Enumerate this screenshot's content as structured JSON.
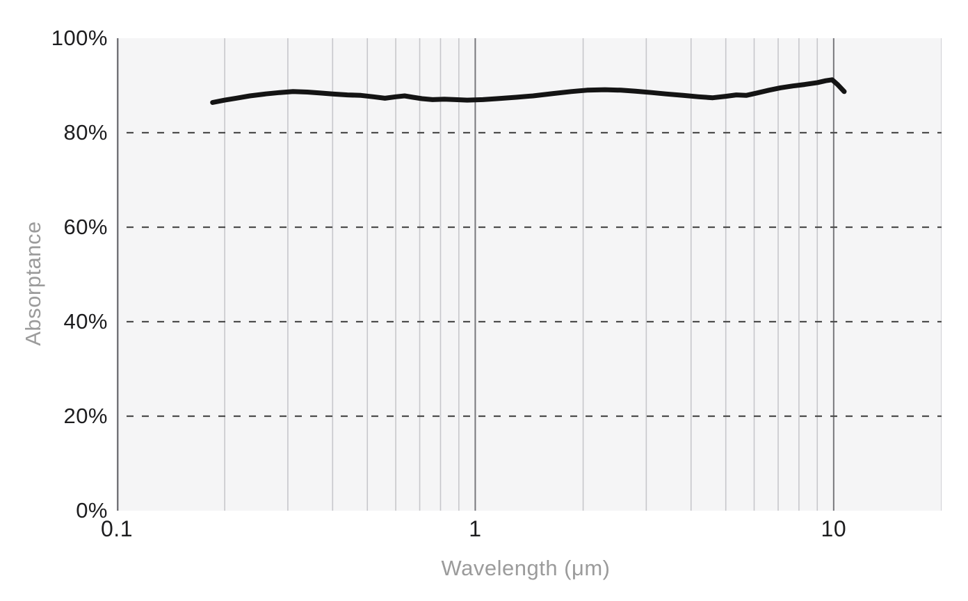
{
  "chart_data": {
    "type": "line",
    "title": "",
    "xlabel": "Wavelength (μm)",
    "ylabel": "Absorptance",
    "x_scale": "log",
    "xlim": [
      0.1,
      20
    ],
    "ylim": [
      0,
      100
    ],
    "grid": true,
    "legend": "none",
    "x_ticks": [
      {
        "value": 0.1,
        "label": "0.1"
      },
      {
        "value": 1,
        "label": "1"
      },
      {
        "value": 10,
        "label": "10"
      }
    ],
    "y_ticks": [
      {
        "value": 0,
        "label": "0%"
      },
      {
        "value": 20,
        "label": "20%"
      },
      {
        "value": 40,
        "label": "40%"
      },
      {
        "value": 60,
        "label": "60%"
      },
      {
        "value": 80,
        "label": "80%"
      },
      {
        "value": 100,
        "label": "100%"
      }
    ],
    "x_gridlines_minor": [
      0.2,
      0.3,
      0.4,
      0.5,
      0.6,
      0.7,
      0.8,
      0.9,
      2,
      3,
      4,
      5,
      6,
      7,
      8,
      9,
      20
    ],
    "x_gridlines_major": [
      1,
      10
    ],
    "y_gridlines_dashed": [
      20,
      40,
      60,
      80
    ],
    "series": [
      {
        "name": "Absorptance",
        "units": {
          "x": "μm",
          "y": "%"
        },
        "points": [
          [
            0.185,
            86.4
          ],
          [
            0.2,
            86.9
          ],
          [
            0.215,
            87.3
          ],
          [
            0.235,
            87.8
          ],
          [
            0.26,
            88.2
          ],
          [
            0.285,
            88.5
          ],
          [
            0.31,
            88.7
          ],
          [
            0.34,
            88.6
          ],
          [
            0.37,
            88.4
          ],
          [
            0.4,
            88.2
          ],
          [
            0.44,
            88.0
          ],
          [
            0.48,
            87.9
          ],
          [
            0.52,
            87.6
          ],
          [
            0.56,
            87.3
          ],
          [
            0.6,
            87.6
          ],
          [
            0.635,
            87.8
          ],
          [
            0.67,
            87.5
          ],
          [
            0.71,
            87.2
          ],
          [
            0.76,
            87.0
          ],
          [
            0.82,
            87.1
          ],
          [
            0.88,
            87.0
          ],
          [
            0.95,
            86.9
          ],
          [
            1.05,
            87.0
          ],
          [
            1.15,
            87.2
          ],
          [
            1.3,
            87.5
          ],
          [
            1.45,
            87.8
          ],
          [
            1.65,
            88.3
          ],
          [
            1.85,
            88.7
          ],
          [
            2.05,
            89.0
          ],
          [
            2.3,
            89.1
          ],
          [
            2.55,
            89.0
          ],
          [
            2.8,
            88.8
          ],
          [
            3.1,
            88.5
          ],
          [
            3.4,
            88.2
          ],
          [
            3.8,
            87.9
          ],
          [
            4.2,
            87.6
          ],
          [
            4.6,
            87.4
          ],
          [
            5.0,
            87.7
          ],
          [
            5.35,
            88.0
          ],
          [
            5.7,
            87.9
          ],
          [
            6.1,
            88.4
          ],
          [
            6.6,
            89.0
          ],
          [
            7.1,
            89.5
          ],
          [
            7.7,
            89.9
          ],
          [
            8.3,
            90.2
          ],
          [
            9.0,
            90.6
          ],
          [
            9.5,
            91.0
          ],
          [
            9.9,
            91.2
          ],
          [
            10.25,
            90.2
          ],
          [
            10.7,
            88.7
          ]
        ]
      }
    ]
  },
  "colors": {
    "plot_bg": "#f5f5f6",
    "grid_minor": "#c7c7cb",
    "grid_major": "#77777c",
    "axis_line": "#737378",
    "grid_dashed": "#4d4d4d",
    "tick_mark": "#9a9a9e",
    "series_line": "#141414",
    "tick_label": "#1d1d1f",
    "axis_title": "#9b9b9b"
  },
  "layout_values": {
    "y_tick_with_dash_only": "20,40,60,80",
    "x_axis_side_ticks": "0.1,1,10"
  }
}
